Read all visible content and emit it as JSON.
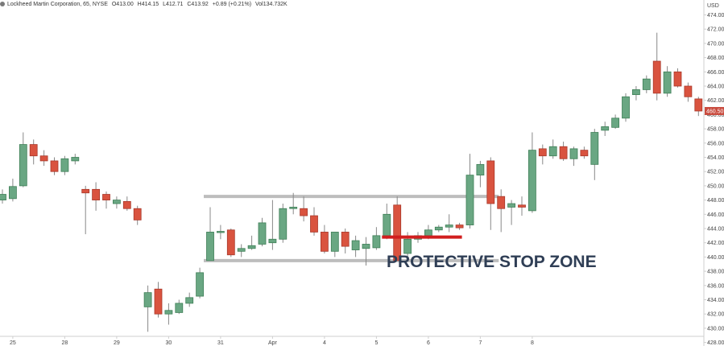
{
  "header": {
    "symbol": "Lockheed Martin Corporation, 65, NYSE",
    "open": "O413.00",
    "high": "H414.15",
    "low": "L412.71",
    "close": "C413.92",
    "change": "+0.89 (+0.21%)",
    "volume": "Vol134.732K"
  },
  "chart_data": {
    "type": "candlestick",
    "currency_label": "USD",
    "annotation": "PROTECTIVE STOP ZONE",
    "ylim": [
      425,
      475
    ],
    "y_ticks": [
      426,
      428,
      430,
      432,
      434,
      436,
      438,
      440,
      442,
      444,
      446,
      448,
      450,
      452,
      454,
      456,
      458,
      460,
      462,
      464,
      466,
      468,
      470,
      472,
      474
    ],
    "x_ticks": [
      {
        "label": "25",
        "index": 1
      },
      {
        "label": "28",
        "index": 6
      },
      {
        "label": "29",
        "index": 11
      },
      {
        "label": "30",
        "index": 16
      },
      {
        "label": "31",
        "index": 21
      },
      {
        "label": "Apr",
        "index": 26
      },
      {
        "label": "4",
        "index": 31
      },
      {
        "label": "5",
        "index": 36
      },
      {
        "label": "6",
        "index": 41
      },
      {
        "label": "7",
        "index": 46
      },
      {
        "label": "8",
        "index": 51
      }
    ],
    "candles": [
      {
        "o": 448.0,
        "h": 449.5,
        "l": 447.5,
        "c": 448.8
      },
      {
        "o": 448.2,
        "h": 451.0,
        "l": 447.8,
        "c": 449.9
      },
      {
        "o": 450.0,
        "h": 457.5,
        "l": 449.8,
        "c": 455.8
      },
      {
        "o": 455.8,
        "h": 456.5,
        "l": 453.0,
        "c": 454.2
      },
      {
        "o": 454.2,
        "h": 455.0,
        "l": 452.8,
        "c": 453.5
      },
      {
        "o": 453.5,
        "h": 454.0,
        "l": 451.5,
        "c": 452.0
      },
      {
        "o": 452.0,
        "h": 454.2,
        "l": 451.5,
        "c": 453.8
      },
      {
        "o": 453.5,
        "h": 454.5,
        "l": 453.0,
        "c": 454.0
      },
      {
        "o": 449.5,
        "h": 450.0,
        "l": 443.2,
        "c": 449.0
      },
      {
        "o": 449.5,
        "h": 450.5,
        "l": 446.5,
        "c": 448.0
      },
      {
        "o": 448.8,
        "h": 449.2,
        "l": 446.8,
        "c": 448.0
      },
      {
        "o": 447.5,
        "h": 448.5,
        "l": 446.8,
        "c": 448.0
      },
      {
        "o": 447.8,
        "h": 448.5,
        "l": 446.5,
        "c": 446.8
      },
      {
        "o": 446.8,
        "h": 447.2,
        "l": 444.5,
        "c": 445.2
      },
      {
        "o": 433.0,
        "h": 436.0,
        "l": 429.5,
        "c": 435.0
      },
      {
        "o": 435.5,
        "h": 436.5,
        "l": 431.5,
        "c": 432.0
      },
      {
        "o": 432.0,
        "h": 433.5,
        "l": 430.5,
        "c": 432.5
      },
      {
        "o": 432.2,
        "h": 434.0,
        "l": 432.0,
        "c": 433.5
      },
      {
        "o": 433.5,
        "h": 435.0,
        "l": 433.0,
        "c": 434.3
      },
      {
        "o": 434.5,
        "h": 438.5,
        "l": 434.2,
        "c": 437.8
      },
      {
        "o": 439.5,
        "h": 447.0,
        "l": 439.5,
        "c": 443.5
      },
      {
        "o": 443.5,
        "h": 444.5,
        "l": 442.5,
        "c": 443.6
      },
      {
        "o": 443.8,
        "h": 444.0,
        "l": 440.0,
        "c": 440.3
      },
      {
        "o": 440.8,
        "h": 441.8,
        "l": 440.0,
        "c": 441.2
      },
      {
        "o": 441.2,
        "h": 443.0,
        "l": 441.0,
        "c": 441.6
      },
      {
        "o": 441.8,
        "h": 445.5,
        "l": 441.5,
        "c": 444.8
      },
      {
        "o": 442.0,
        "h": 448.0,
        "l": 441.0,
        "c": 442.5
      },
      {
        "o": 442.5,
        "h": 447.5,
        "l": 442.0,
        "c": 446.8
      },
      {
        "o": 446.8,
        "h": 449.0,
        "l": 446.0,
        "c": 447.0
      },
      {
        "o": 446.8,
        "h": 448.5,
        "l": 445.0,
        "c": 445.8
      },
      {
        "o": 445.8,
        "h": 447.0,
        "l": 443.0,
        "c": 443.5
      },
      {
        "o": 443.5,
        "h": 444.5,
        "l": 440.5,
        "c": 440.8
      },
      {
        "o": 440.8,
        "h": 443.5,
        "l": 440.0,
        "c": 443.5
      },
      {
        "o": 443.5,
        "h": 444.0,
        "l": 440.5,
        "c": 441.5
      },
      {
        "o": 441.0,
        "h": 443.0,
        "l": 440.0,
        "c": 442.3
      },
      {
        "o": 441.2,
        "h": 442.8,
        "l": 438.8,
        "c": 441.8
      },
      {
        "o": 441.3,
        "h": 444.2,
        "l": 441.0,
        "c": 443.0
      },
      {
        "o": 443.0,
        "h": 447.5,
        "l": 442.5,
        "c": 446.0
      },
      {
        "o": 447.3,
        "h": 448.5,
        "l": 439.5,
        "c": 439.5
      },
      {
        "o": 440.5,
        "h": 443.5,
        "l": 440.0,
        "c": 442.5
      },
      {
        "o": 442.5,
        "h": 443.5,
        "l": 442.0,
        "c": 443.0
      },
      {
        "o": 443.0,
        "h": 444.5,
        "l": 442.5,
        "c": 443.8
      },
      {
        "o": 443.8,
        "h": 444.5,
        "l": 443.5,
        "c": 444.2
      },
      {
        "o": 444.2,
        "h": 446.0,
        "l": 443.5,
        "c": 444.5
      },
      {
        "o": 444.5,
        "h": 444.8,
        "l": 443.8,
        "c": 444.1
      },
      {
        "o": 444.5,
        "h": 454.5,
        "l": 444.0,
        "c": 451.5
      },
      {
        "o": 451.5,
        "h": 453.5,
        "l": 449.8,
        "c": 453.0
      },
      {
        "o": 453.5,
        "h": 454.0,
        "l": 443.8,
        "c": 447.5
      },
      {
        "o": 448.5,
        "h": 449.5,
        "l": 443.5,
        "c": 446.8
      },
      {
        "o": 447.0,
        "h": 448.0,
        "l": 444.5,
        "c": 447.5
      },
      {
        "o": 447.3,
        "h": 448.5,
        "l": 445.8,
        "c": 447.0
      },
      {
        "o": 446.5,
        "h": 457.5,
        "l": 446.2,
        "c": 455.0
      },
      {
        "o": 455.2,
        "h": 455.8,
        "l": 453.0,
        "c": 454.2
      },
      {
        "o": 454.2,
        "h": 456.5,
        "l": 453.8,
        "c": 455.5
      },
      {
        "o": 455.5,
        "h": 456.2,
        "l": 453.5,
        "c": 453.8
      },
      {
        "o": 453.8,
        "h": 455.5,
        "l": 452.8,
        "c": 455.2
      },
      {
        "o": 455.0,
        "h": 455.5,
        "l": 453.8,
        "c": 454.2
      },
      {
        "o": 453.0,
        "h": 458.0,
        "l": 450.8,
        "c": 457.5
      },
      {
        "o": 457.8,
        "h": 459.0,
        "l": 457.0,
        "c": 458.3
      },
      {
        "o": 458.2,
        "h": 460.0,
        "l": 458.0,
        "c": 459.5
      },
      {
        "o": 459.5,
        "h": 463.0,
        "l": 459.0,
        "c": 462.5
      },
      {
        "o": 462.8,
        "h": 464.0,
        "l": 462.0,
        "c": 463.5
      },
      {
        "o": 463.5,
        "h": 465.5,
        "l": 463.0,
        "c": 465.0
      },
      {
        "o": 467.5,
        "h": 471.5,
        "l": 462.0,
        "c": 463.0
      },
      {
        "o": 463.0,
        "h": 466.8,
        "l": 462.5,
        "c": 466.0
      },
      {
        "o": 466.0,
        "h": 466.5,
        "l": 463.8,
        "c": 464.0
      },
      {
        "o": 464.0,
        "h": 464.5,
        "l": 461.8,
        "c": 462.5
      },
      {
        "o": 462.2,
        "h": 462.5,
        "l": 459.8,
        "c": 460.5
      }
    ],
    "zone_top": 448.5,
    "zone_bottom": 439.5,
    "zone_start_index": 20,
    "zone_end_index": 47,
    "stop_level": 442.8,
    "stop_start_index": 37,
    "stop_end_index": 44
  },
  "colors": {
    "up": "#6aa783",
    "up_border": "#3f7f57",
    "down": "#d9533f",
    "down_border": "#a8392b",
    "wick": "#888888",
    "zone_line": "#bdbdbd",
    "stop_line": "#d11e1e",
    "axis": "#cfcfcf",
    "price_tag": "#c94c3f"
  }
}
